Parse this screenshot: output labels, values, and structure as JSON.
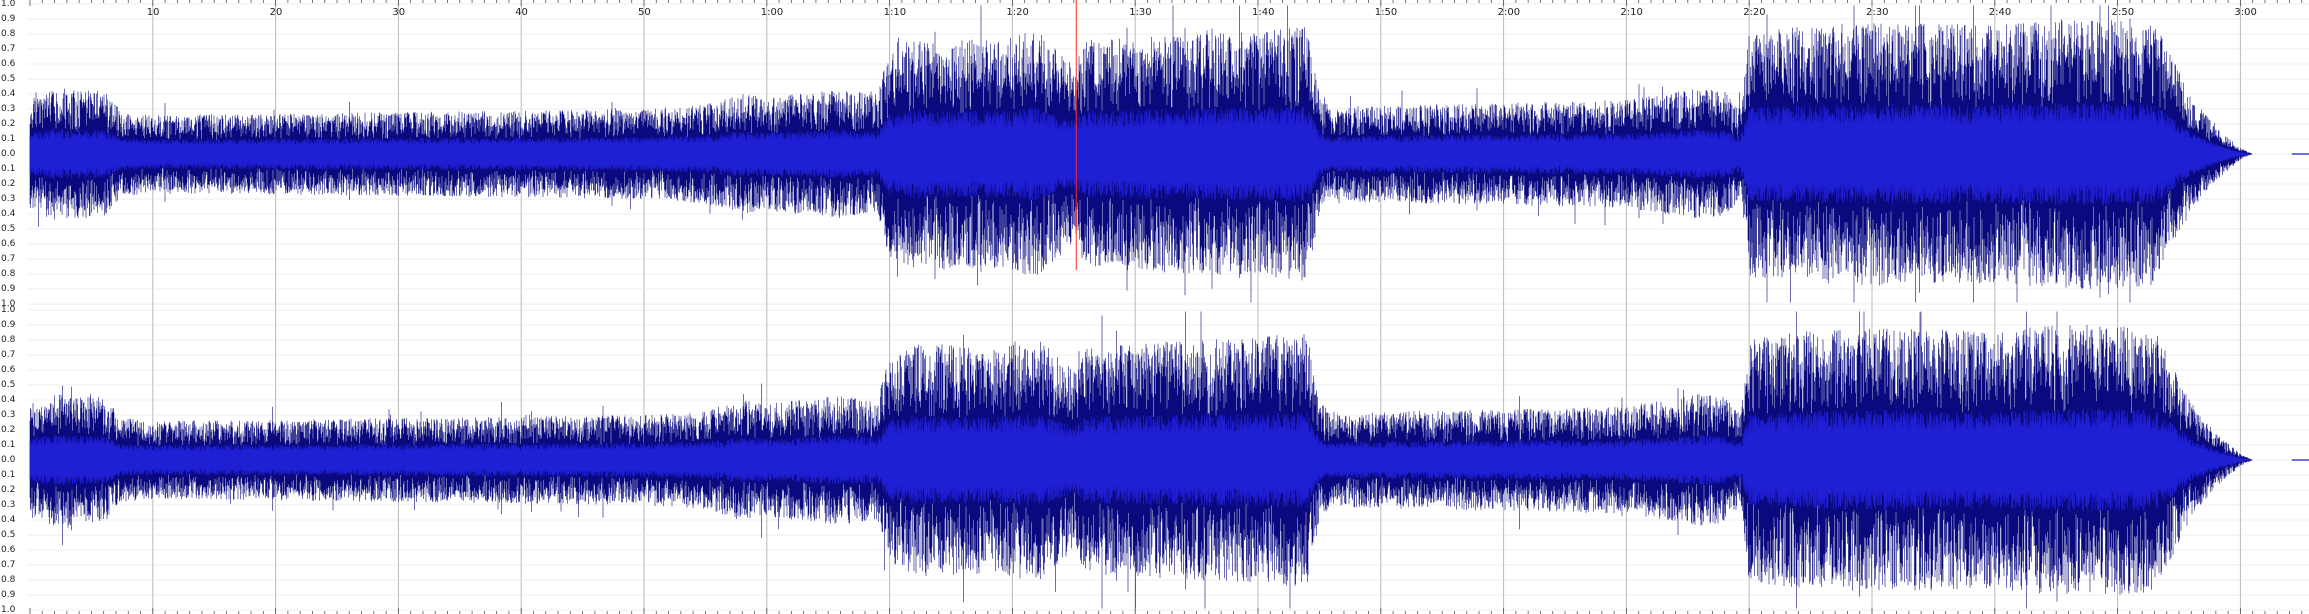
{
  "view": {
    "name": "audio-waveform-editor",
    "channels": [
      "left",
      "right"
    ],
    "duration_seconds": 185,
    "visible_end_seconds": 185,
    "cursor_time_seconds": 85.2
  },
  "ruler": {
    "labels": [
      "10",
      "20",
      "30",
      "40",
      "50",
      "1:00",
      "1:10",
      "1:20",
      "1:30",
      "1:40",
      "1:50",
      "2:00",
      "2:10",
      "2:20",
      "2:30",
      "2:40",
      "2:50",
      "3:00"
    ],
    "label_times": [
      10,
      20,
      30,
      40,
      50,
      60,
      70,
      80,
      90,
      100,
      110,
      120,
      130,
      140,
      150,
      160,
      170,
      180
    ]
  },
  "amplitude_scale": {
    "labels": [
      "1.0",
      "0.9",
      "0.8",
      "0.7",
      "0.6",
      "0.5",
      "0.4",
      "0.3",
      "0.2",
      "0.1",
      "0.0",
      "0.1",
      "0.2",
      "0.3",
      "0.4",
      "0.5",
      "0.6",
      "0.7",
      "0.8",
      "0.9",
      "1.0"
    ]
  },
  "colors": {
    "wave_dark": "#0a0a7e",
    "wave_core": "#1f1fd4",
    "cursor": "#ff2a2a",
    "grid": "#dddddd",
    "ruler_text": "#222222"
  },
  "envelope": {
    "times": [
      0,
      2,
      6,
      7.5,
      10,
      20,
      30,
      40,
      50,
      55,
      58,
      60,
      66,
      69,
      70,
      70.5,
      72,
      78,
      82,
      85,
      86,
      90,
      95,
      100,
      104,
      105,
      106,
      108,
      120,
      130,
      136,
      138,
      139.3,
      140,
      145,
      150,
      160,
      165,
      170,
      173,
      174,
      176,
      178,
      180,
      181,
      185
    ],
    "levels": [
      0.38,
      0.44,
      0.42,
      0.28,
      0.26,
      0.27,
      0.28,
      0.29,
      0.3,
      0.33,
      0.4,
      0.38,
      0.43,
      0.4,
      0.72,
      0.7,
      0.78,
      0.76,
      0.82,
      0.6,
      0.76,
      0.78,
      0.8,
      0.82,
      0.85,
      0.4,
      0.3,
      0.32,
      0.34,
      0.36,
      0.44,
      0.42,
      0.3,
      0.82,
      0.86,
      0.88,
      0.86,
      0.9,
      0.9,
      0.88,
      0.72,
      0.38,
      0.18,
      0.04,
      0.0,
      0.0
    ]
  }
}
